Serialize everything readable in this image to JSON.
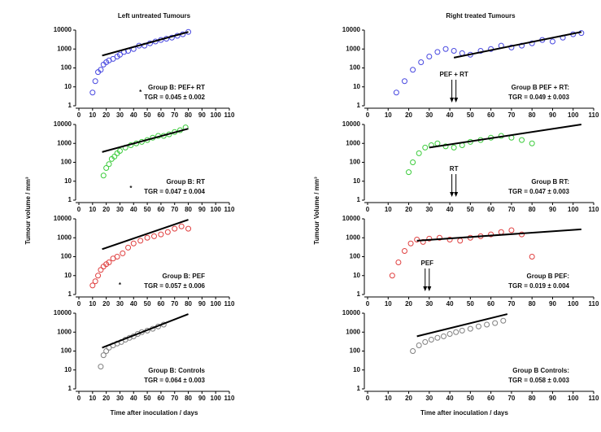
{
  "chart_data": [
    {
      "type": "scatter",
      "title": "Left untreated Tumours",
      "log_y": true,
      "xlim": [
        0,
        110
      ],
      "ylim": [
        1,
        10000
      ],
      "xticks": [
        0,
        10,
        20,
        30,
        40,
        50,
        60,
        70,
        80,
        90,
        100,
        110
      ],
      "yticks": [
        1,
        10,
        100,
        1000,
        10000
      ],
      "annotations": [
        "Group B: PEF+ RT",
        "TGR = 0.045 ± 0.002"
      ],
      "star": {
        "text": "*",
        "x": 45,
        "y": 5
      },
      "series": [
        {
          "color": "#4848e0",
          "x": [
            10,
            12,
            14,
            16,
            18,
            20,
            22,
            25,
            28,
            30,
            33,
            36,
            40,
            44,
            48,
            52,
            56,
            60,
            64,
            68,
            72,
            76,
            80
          ],
          "values": [
            5,
            20,
            60,
            80,
            150,
            200,
            250,
            300,
            400,
            500,
            700,
            800,
            1000,
            1500,
            1500,
            2000,
            2500,
            3000,
            3500,
            4000,
            5000,
            6000,
            8000
          ]
        },
        {
          "type": "line",
          "color": "#000000",
          "x": [
            17,
            80
          ],
          "values": [
            450,
            8000
          ]
        }
      ]
    },
    {
      "type": "scatter",
      "ylabel": "Tumour volume / mm³",
      "log_y": true,
      "xlim": [
        0,
        110
      ],
      "ylim": [
        1,
        10000
      ],
      "xticks": [
        0,
        10,
        20,
        30,
        40,
        50,
        60,
        70,
        80,
        90,
        100,
        110
      ],
      "yticks": [
        1,
        10,
        100,
        1000,
        10000
      ],
      "annotations": [
        "Group B: RT",
        "TGR = 0.047 ± 0.004"
      ],
      "star": {
        "text": "*",
        "x": 38,
        "y": 4
      },
      "series": [
        {
          "color": "#3ccc3c",
          "x": [
            18,
            20,
            22,
            24,
            26,
            28,
            30,
            34,
            38,
            42,
            46,
            50,
            54,
            58,
            62,
            66,
            70,
            74,
            78
          ],
          "values": [
            20,
            50,
            80,
            150,
            200,
            300,
            400,
            600,
            800,
            1000,
            1200,
            1500,
            2000,
            2500,
            2500,
            3000,
            4000,
            5000,
            7000
          ]
        },
        {
          "type": "line",
          "color": "#000000",
          "x": [
            17,
            80
          ],
          "values": [
            350,
            6000
          ]
        }
      ]
    },
    {
      "type": "scatter",
      "log_y": true,
      "xlim": [
        0,
        110
      ],
      "ylim": [
        1,
        10000
      ],
      "xticks": [
        0,
        10,
        20,
        30,
        40,
        50,
        60,
        70,
        80,
        90,
        100,
        110
      ],
      "yticks": [
        1,
        10,
        100,
        1000,
        10000
      ],
      "annotations": [
        "Group B:  PEF",
        "TGR = 0.057 ± 0.006"
      ],
      "star": {
        "text": "*",
        "x": 30,
        "y": 3
      },
      "series": [
        {
          "color": "#e04040",
          "x": [
            10,
            12,
            14,
            16,
            18,
            20,
            22,
            25,
            28,
            32,
            36,
            40,
            45,
            50,
            55,
            60,
            65,
            70,
            75,
            80
          ],
          "values": [
            3,
            5,
            10,
            20,
            30,
            40,
            50,
            80,
            100,
            150,
            300,
            500,
            700,
            1000,
            1200,
            1500,
            2000,
            3000,
            4000,
            3000
          ]
        },
        {
          "type": "line",
          "color": "#000000",
          "x": [
            17,
            80
          ],
          "values": [
            250,
            9000
          ]
        }
      ]
    },
    {
      "type": "scatter",
      "xlabel": "Time after inoculation / days",
      "log_y": true,
      "xlim": [
        0,
        110
      ],
      "ylim": [
        1,
        10000
      ],
      "xticks": [
        0,
        10,
        20,
        30,
        40,
        50,
        60,
        70,
        80,
        90,
        100,
        110
      ],
      "yticks": [
        1,
        10,
        100,
        1000,
        10000
      ],
      "annotations": [
        "Group B: Controls",
        "TGR = 0.064 ± 0.003"
      ],
      "series": [
        {
          "color": "#808080",
          "x": [
            16,
            18,
            20,
            22,
            25,
            28,
            31,
            34,
            37,
            40,
            43,
            46,
            50,
            54,
            58,
            62
          ],
          "values": [
            15,
            60,
            100,
            150,
            200,
            250,
            300,
            400,
            500,
            600,
            800,
            1000,
            1200,
            1500,
            2000,
            2500
          ]
        },
        {
          "type": "line",
          "color": "#000000",
          "x": [
            17,
            80
          ],
          "values": [
            150,
            9000
          ]
        }
      ]
    },
    {
      "type": "scatter",
      "title": "Right treated Tumours",
      "log_y": true,
      "xlim": [
        0,
        110
      ],
      "ylim": [
        1,
        10000
      ],
      "xticks": [
        0,
        10,
        20,
        30,
        40,
        50,
        60,
        70,
        80,
        90,
        100,
        110
      ],
      "yticks": [
        1,
        10,
        100,
        1000,
        10000
      ],
      "annotations": [
        "Group B PEF + RT:",
        "TGR = 0.049 ± 0.003"
      ],
      "treatment": {
        "label": "PEF + RT",
        "x": [
          41,
          43
        ]
      },
      "series": [
        {
          "color": "#4848e0",
          "x": [
            14,
            18,
            22,
            26,
            30,
            34,
            38,
            42,
            46,
            50,
            55,
            60,
            65,
            70,
            75,
            80,
            85,
            90,
            95,
            100,
            104
          ],
          "values": [
            5,
            20,
            80,
            200,
            400,
            700,
            1000,
            800,
            600,
            500,
            800,
            1000,
            1500,
            1200,
            1500,
            2000,
            3000,
            2500,
            4000,
            6000,
            7000
          ]
        },
        {
          "type": "line",
          "color": "#000000",
          "x": [
            42,
            104
          ],
          "values": [
            350,
            8000
          ]
        }
      ]
    },
    {
      "type": "scatter",
      "ylabel": "Tumour Volume / mm³",
      "log_y": true,
      "xlim": [
        0,
        110
      ],
      "ylim": [
        1,
        10000
      ],
      "xticks": [
        0,
        10,
        20,
        30,
        40,
        50,
        60,
        70,
        80,
        90,
        100,
        110
      ],
      "yticks": [
        1,
        10,
        100,
        1000,
        10000
      ],
      "annotations": [
        "Group B RT:",
        "TGR = 0.047 ± 0.003"
      ],
      "treatment": {
        "label": "RT",
        "x": [
          41,
          43
        ]
      },
      "series": [
        {
          "color": "#3ccc3c",
          "x": [
            20,
            22,
            25,
            28,
            31,
            34,
            38,
            42,
            46,
            50,
            55,
            60,
            65,
            70,
            75,
            80
          ],
          "values": [
            30,
            100,
            300,
            600,
            800,
            1000,
            700,
            600,
            800,
            1200,
            1500,
            2000,
            2500,
            2000,
            1500,
            1000
          ]
        },
        {
          "type": "line",
          "color": "#000000",
          "x": [
            30,
            104
          ],
          "values": [
            600,
            10000
          ]
        }
      ]
    },
    {
      "type": "scatter",
      "log_y": true,
      "xlim": [
        0,
        110
      ],
      "ylim": [
        1,
        10000
      ],
      "xticks": [
        0,
        10,
        20,
        30,
        40,
        50,
        60,
        70,
        80,
        90,
        100,
        110
      ],
      "yticks": [
        1,
        10,
        100,
        1000,
        10000
      ],
      "annotations": [
        "Group B PEF:",
        "TGR = 0.019 ± 0.004"
      ],
      "treatment": {
        "label": "PEF",
        "x": [
          28,
          30
        ]
      },
      "series": [
        {
          "color": "#e04040",
          "x": [
            12,
            15,
            18,
            21,
            24,
            27,
            30,
            35,
            40,
            45,
            50,
            55,
            60,
            65,
            70,
            75,
            80
          ],
          "values": [
            10,
            50,
            200,
            500,
            800,
            600,
            900,
            1000,
            800,
            700,
            1000,
            1200,
            1500,
            2000,
            2500,
            1500,
            100
          ]
        },
        {
          "type": "line",
          "color": "#000000",
          "x": [
            24,
            104
          ],
          "values": [
            700,
            2800
          ]
        }
      ]
    },
    {
      "type": "scatter",
      "xlabel": "Time after inoculation / days",
      "log_y": true,
      "xlim": [
        0,
        110
      ],
      "ylim": [
        1,
        10000
      ],
      "xticks": [
        0,
        10,
        20,
        30,
        40,
        50,
        60,
        70,
        80,
        90,
        100,
        110
      ],
      "yticks": [
        1,
        10,
        100,
        1000,
        10000
      ],
      "annotations": [
        "Group B Controls:",
        "TGR = 0.058 ± 0.003"
      ],
      "series": [
        {
          "color": "#808080",
          "x": [
            22,
            25,
            28,
            31,
            34,
            37,
            40,
            43,
            46,
            50,
            54,
            58,
            62,
            66
          ],
          "values": [
            100,
            200,
            300,
            400,
            500,
            600,
            800,
            1000,
            1200,
            1500,
            2000,
            2500,
            3000,
            4000
          ]
        },
        {
          "type": "line",
          "color": "#000000",
          "x": [
            24,
            68
          ],
          "values": [
            600,
            9000
          ]
        }
      ]
    }
  ]
}
